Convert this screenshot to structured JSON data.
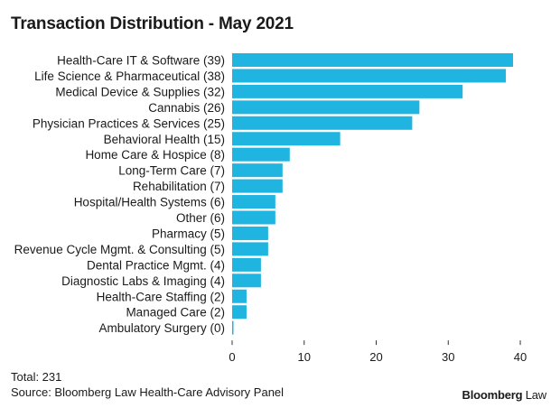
{
  "title": "Transaction Distribution - May 2021",
  "total_text": "Total: 231",
  "source_text": "Source: Bloomberg Law Health-Care Advisory Panel",
  "brand": {
    "name_bold": "Bloomberg",
    "name_regular": " Law"
  },
  "colors": {
    "bar": "#1fb5e0",
    "text": "#1a1a1a",
    "axis": "#333333"
  },
  "chart_data": {
    "type": "bar",
    "orientation": "horizontal",
    "title": "Transaction Distribution - May 2021",
    "categories": [
      "Health-Care IT & Software (39)",
      "Life Science & Pharmaceutical (38)",
      "Medical Device & Supplies (32)",
      "Cannabis (26)",
      "Physician Practices & Services (25)",
      "Behavioral Health (15)",
      "Home Care & Hospice (8)",
      "Long-Term Care (7)",
      "Rehabilitation (7)",
      "Hospital/Health Systems (6)",
      "Other (6)",
      "Pharmacy (5)",
      "Revenue Cycle Mgmt. & Consulting (5)",
      "Dental Practice Mgmt. (4)",
      "Diagnostic Labs & Imaging (4)",
      "Health-Care Staffing (2)",
      "Managed Care (2)",
      "Ambulatory Surgery (0)"
    ],
    "values": [
      39,
      38,
      32,
      26,
      25,
      15,
      8,
      7,
      7,
      6,
      6,
      5,
      5,
      4,
      4,
      2,
      2,
      0
    ],
    "xlim": [
      0,
      41
    ],
    "xticks": [
      0,
      10,
      20,
      30,
      40
    ],
    "grid": false,
    "legend": "none"
  }
}
